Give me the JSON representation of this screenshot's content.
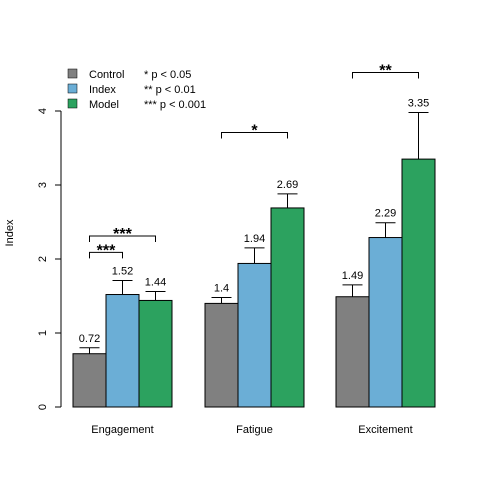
{
  "chart_data": {
    "type": "bar",
    "ylabel": "Index",
    "ylim": [
      0,
      4
    ],
    "yticks": [
      0,
      1,
      2,
      3,
      4
    ],
    "categories": [
      "Engagement",
      "Fatigue",
      "Excitement"
    ],
    "series": [
      {
        "name": "Control",
        "color": "#808080",
        "values": [
          0.72,
          1.4,
          1.49
        ],
        "error_upper": [
          0.8,
          1.48,
          1.65
        ],
        "value_labels": [
          "0.72",
          "1.4",
          "1.49"
        ]
      },
      {
        "name": "Index",
        "color": "#6baed6",
        "values": [
          1.52,
          1.94,
          2.29
        ],
        "error_upper": [
          1.71,
          2.15,
          2.49
        ],
        "value_labels": [
          "1.52",
          "1.94",
          "2.29"
        ]
      },
      {
        "name": "Model",
        "color": "#2ca25f",
        "values": [
          1.44,
          2.69,
          3.35
        ],
        "error_upper": [
          1.56,
          2.88,
          3.98
        ],
        "value_labels": [
          "1.44",
          "2.69",
          "3.35"
        ]
      }
    ],
    "significance": [
      {
        "category": 0,
        "from_series": 0,
        "to_series": 1,
        "y": 2.09,
        "label": "***"
      },
      {
        "category": 0,
        "from_series": 0,
        "to_series": 2,
        "y": 2.31,
        "label": "***"
      },
      {
        "category": 1,
        "from_series": 0,
        "to_series": 2,
        "y": 3.71,
        "label": "*"
      },
      {
        "category": 2,
        "from_series": 0,
        "to_series": 2,
        "y": 4.52,
        "label": "**"
      }
    ],
    "legend": {
      "position": "top-left",
      "key": [
        "* p < 0.05",
        "** p < 0.01",
        "*** p < 0.001"
      ]
    }
  }
}
